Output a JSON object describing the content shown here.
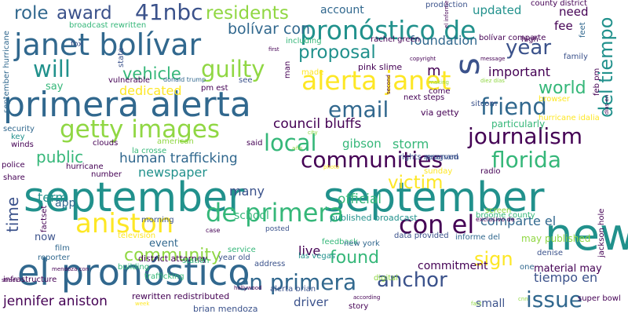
{
  "palette": {
    "purple": "#440154",
    "indigo": "#3b528b",
    "blue": "#31688e",
    "teal": "#21918c",
    "green": "#35b779",
    "lime": "#90d743",
    "yellow": "#fde725"
  },
  "words": [
    "september",
    "september",
    "new",
    "el pronóstico",
    "primera alerta",
    "janet bolívar",
    "pronóstico de",
    "alerta janet",
    "aniston",
    "getty images",
    "de primera",
    "en primera",
    "con el",
    "journalism",
    "communities",
    "florida",
    "will",
    "guilty",
    "vehicle",
    "friend",
    "email",
    "local",
    "victim",
    "community",
    "anchor",
    "issue",
    "year",
    "world",
    "del tiempo",
    "41nbc",
    "award",
    "role",
    "residents",
    "proposal",
    "bolívar con",
    "foundation",
    "fee",
    "need",
    "updated",
    "account",
    "jennifer aniston",
    "tiempo en",
    "sign",
    "found",
    "official",
    "live",
    "human trafficking",
    "council bluffs",
    "public",
    "time",
    "term",
    "many",
    "school",
    "driver",
    "comparte el",
    "commitment",
    "material may",
    "may published",
    "important",
    "newspaper",
    "gibson",
    "storm",
    "dedicated",
    "app",
    "event",
    "say",
    "now",
    "via getty",
    "s",
    "m",
    "small",
    "pink slime",
    "particularly",
    "hurricane idalia",
    "rachel green",
    "bolívar comparte",
    "district attorney",
    "alerta brian",
    "brian mendoza",
    "rewritten redistributed",
    "published broadcast",
    "broome county",
    "feedback",
    "la crosse",
    "trafficking",
    "station",
    "building",
    "film",
    "reporter",
    "infrastructure",
    "digital",
    "denise",
    "jackson hole",
    "super bowl",
    "sitcom",
    "family",
    "feet",
    "high",
    "program",
    "sunday",
    "radio",
    "rights reserved",
    "including",
    "production",
    "fox",
    "broadcast rewritten",
    "state",
    "donald trump",
    "vulnerable",
    "pm est",
    "see",
    "man",
    "made",
    "said",
    "clouds",
    "american",
    "hurricane",
    "winds",
    "security",
    "key",
    "police",
    "share",
    "factset",
    "number",
    "television",
    "las vegas",
    "new york",
    "address",
    "year old",
    "service",
    "story",
    "data provided",
    "informe del",
    "screen",
    "one",
    "next steps",
    "come",
    "browser",
    "feb pm",
    "september hurricane",
    "county district",
    "el informe",
    "exclusivo de",
    "posted",
    "morning",
    "street",
    "mendoza con",
    "city",
    "photo",
    "week",
    "hollywood",
    "according",
    "copyright",
    "message",
    "making",
    "second",
    "fact",
    "case",
    "first",
    "diez días",
    "días en",
    "año",
    "cnn",
    "possible",
    "seen"
  ]
}
